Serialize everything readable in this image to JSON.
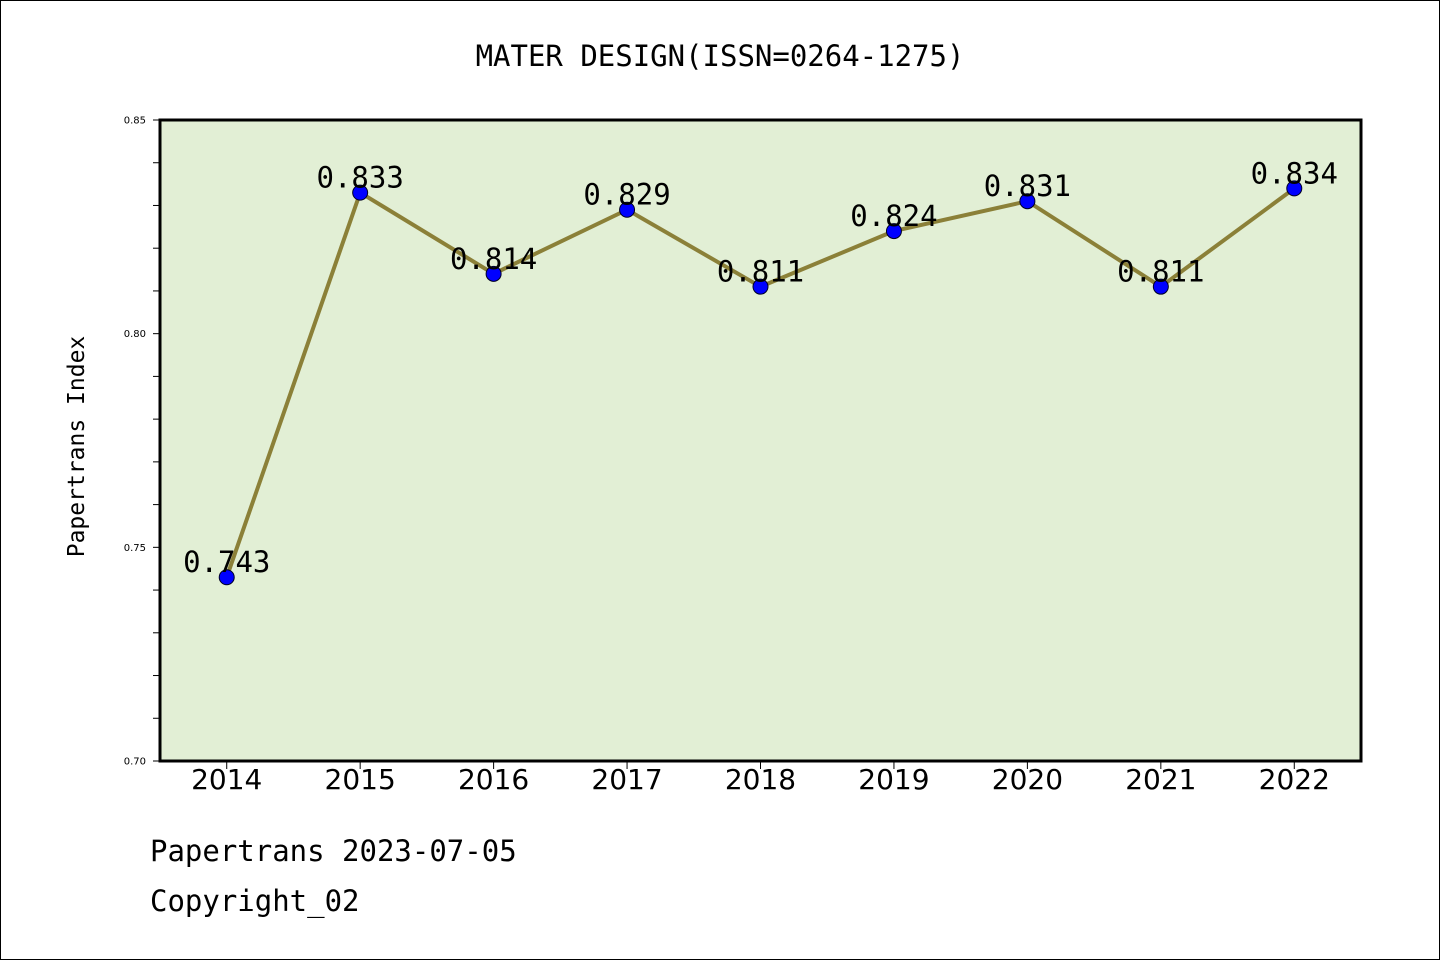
{
  "chart_data": {
    "type": "line",
    "title": "MATER DESIGN(ISSN=0264-1275)",
    "xlabel": "",
    "ylabel": "Papertrans Index",
    "x": [
      "2014",
      "2015",
      "2016",
      "2017",
      "2018",
      "2019",
      "2020",
      "2021",
      "2022"
    ],
    "series": [
      {
        "values": [
          0.743,
          0.833,
          0.814,
          0.829,
          0.811,
          0.824,
          0.831,
          0.811,
          0.834
        ],
        "labels": [
          "0.743",
          "0.833",
          "0.814",
          "0.829",
          "0.811",
          "0.824",
          "0.831",
          "0.811",
          "0.834"
        ]
      }
    ],
    "ylim": [
      0.7,
      0.85
    ],
    "yticks": [
      "0.70",
      "0.75",
      "0.80",
      "0.85"
    ],
    "grid": false,
    "colors": {
      "plot_background": "#e2efd5",
      "line": "#8b8038",
      "marker": "#0000ff"
    }
  },
  "footer": {
    "line1": "Papertrans 2023-07-05",
    "line2": "Copyright_02"
  }
}
